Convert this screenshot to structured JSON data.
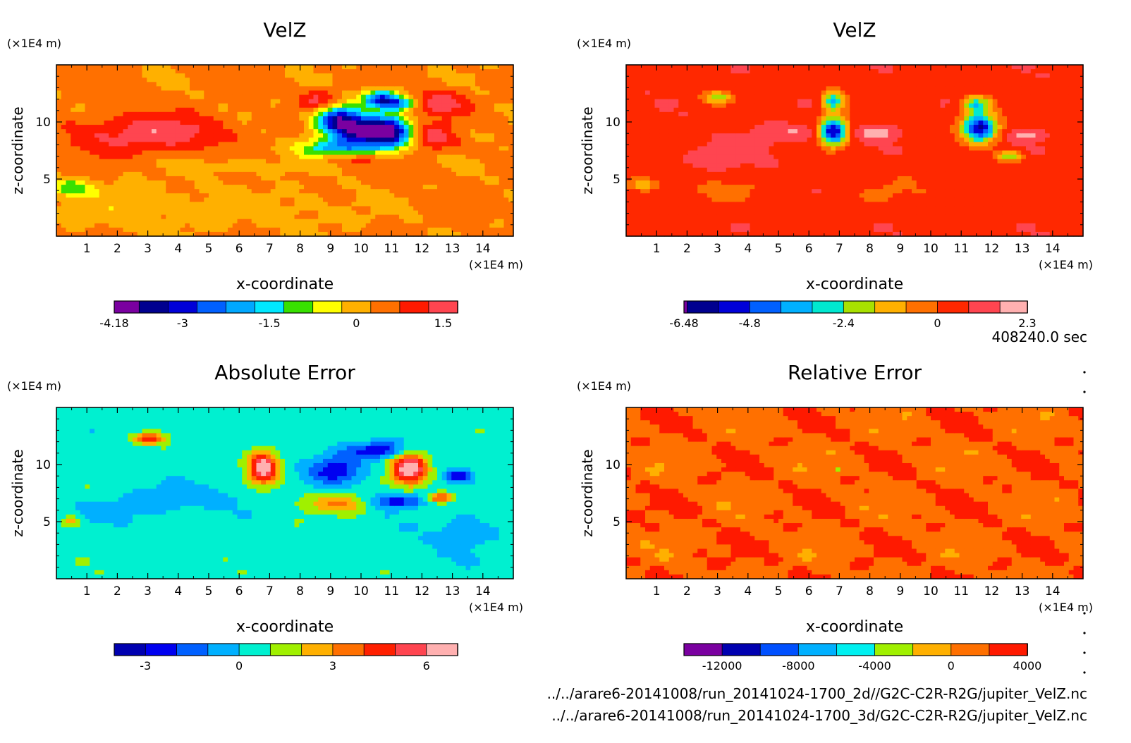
{
  "time_label": "408240.0 sec",
  "file_paths": [
    "../../arare6-20141008/run_20141024-1700_2d//G2C-C2R-R2G/jupiter_VelZ.nc",
    "../../arare6-20141008/run_20141024-1700_3d/G2C-C2R-R2G/jupiter_VelZ.nc"
  ],
  "chart_data": [
    {
      "type": "heatmap",
      "title": "VelZ",
      "xlabel": "x-coordinate",
      "ylabel": "z-coordinate",
      "x_unit": "(×1E4 m)",
      "y_unit": "(×1E4 m)",
      "xlim": [
        0,
        15
      ],
      "ylim": [
        0,
        15
      ],
      "x_ticks": [
        "1",
        "2",
        "3",
        "4",
        "5",
        "6",
        "7",
        "8",
        "9",
        "10",
        "11",
        "12",
        "13",
        "14"
      ],
      "y_ticks": [
        "5",
        "10"
      ],
      "levels": [
        -4.18,
        -3.75,
        -3.25,
        -2.75,
        -2.25,
        -1.75,
        -1.25,
        -0.75,
        -0.25,
        0.25,
        0.75,
        1.25,
        1.75
      ],
      "colorbar_labels": [
        "-4.18",
        "-3",
        "-1.5",
        "0",
        "1.5"
      ],
      "colorbar_colors": [
        "#7a00a0",
        "#00008f",
        "#0000d8",
        "#0060ff",
        "#00a8ff",
        "#00e8ff",
        "#38e000",
        "#ffff00",
        "#ffb000",
        "#ff7000",
        "#ff1a00",
        "#ff4550",
        "#ffb0b0"
      ]
    },
    {
      "type": "heatmap",
      "title": "VelZ",
      "xlabel": "x-coordinate",
      "ylabel": "z-coordinate",
      "x_unit": "(×1E4 m)",
      "y_unit": "(×1E4 m)",
      "xlim": [
        0,
        15
      ],
      "ylim": [
        0,
        15
      ],
      "x_ticks": [
        "1",
        "2",
        "3",
        "4",
        "5",
        "6",
        "7",
        "8",
        "9",
        "10",
        "11",
        "12",
        "13",
        "14"
      ],
      "y_ticks": [
        "5",
        "10"
      ],
      "levels": [
        -6.48,
        -6.4,
        -5.6,
        -4.8,
        -4.0,
        -3.2,
        -2.4,
        -1.6,
        -0.8,
        0.0,
        0.8,
        1.6,
        2.3
      ],
      "colorbar_labels": [
        "-6.48",
        "-4.8",
        "-2.4",
        "0",
        "2.3"
      ],
      "colorbar_colors": [
        "#7a00a0",
        "#00008f",
        "#0000d8",
        "#0060ff",
        "#00b0ff",
        "#00e8d0",
        "#a8e000",
        "#ffb000",
        "#ff7000",
        "#ff2800",
        "#ff4550",
        "#ffb0b0"
      ]
    },
    {
      "type": "heatmap",
      "title": "Absolute Error",
      "xlabel": "x-coordinate",
      "ylabel": "z-coordinate",
      "x_unit": "(×1E4 m)",
      "y_unit": "(×1E4 m)",
      "xlim": [
        0,
        15
      ],
      "ylim": [
        0,
        15
      ],
      "x_ticks": [
        "1",
        "2",
        "3",
        "4",
        "5",
        "6",
        "7",
        "8",
        "9",
        "10",
        "11",
        "12",
        "13",
        "14"
      ],
      "y_ticks": [
        "5",
        "10"
      ],
      "levels": [
        -4,
        -3,
        -2,
        -1,
        0,
        1,
        2,
        3,
        4,
        5,
        6,
        7
      ],
      "colorbar_labels": [
        "-3",
        "0",
        "3",
        "6"
      ],
      "colorbar_colors": [
        "#0000b0",
        "#0000f0",
        "#0060ff",
        "#00b0ff",
        "#00f0d0",
        "#a0f000",
        "#ffb000",
        "#ff7000",
        "#ff2000",
        "#ff4550",
        "#ffb0b0"
      ]
    },
    {
      "type": "heatmap",
      "title": "Relative Error",
      "xlabel": "x-coordinate",
      "ylabel": "z-coordinate",
      "x_unit": "(×1E4 m)",
      "y_unit": "(×1E4 m)",
      "xlim": [
        0,
        15
      ],
      "ylim": [
        0,
        15
      ],
      "x_ticks": [
        "1",
        "2",
        "3",
        "4",
        "5",
        "6",
        "7",
        "8",
        "9",
        "10",
        "11",
        "12",
        "13",
        "14"
      ],
      "y_ticks": [
        "5",
        "10"
      ],
      "levels": [
        -14000,
        -12000,
        -10000,
        -8000,
        -6000,
        -4000,
        -2000,
        0,
        2000,
        4000
      ],
      "colorbar_labels": [
        "-12000",
        "-8000",
        "-4000",
        "0",
        "4000"
      ],
      "colorbar_colors": [
        "#7a00a0",
        "#0000b0",
        "#0050ff",
        "#00b0ff",
        "#00f0f0",
        "#a0f000",
        "#ffb000",
        "#ff7000",
        "#ff1a00",
        "#ffb0b0"
      ]
    }
  ]
}
